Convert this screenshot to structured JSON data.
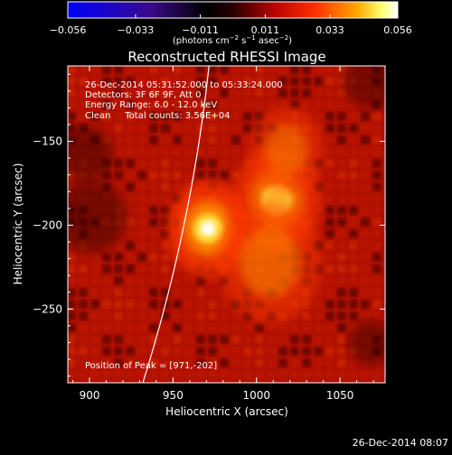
{
  "colorbar": {
    "ticks": [
      "−0.056",
      "−0.033",
      "−0.011",
      "0.011",
      "0.033",
      "0.056"
    ],
    "tick_values": [
      -0.056,
      -0.033,
      -0.011,
      0.011,
      0.033,
      0.056
    ],
    "range": [
      -0.056,
      0.056
    ],
    "colormap": "blue-black-red-yellow-white",
    "units_prefix": "(photons cm",
    "units_sup1": "−2",
    "units_mid": " s",
    "units_sup2": "−1",
    "units_mid2": " asec",
    "units_sup3": "−2",
    "units_suffix": ")"
  },
  "chart_data": {
    "type": "heatmap",
    "title": "Reconstructed RHESSI Image",
    "xlabel": "Heliocentric X (arcsec)",
    "ylabel": "Heliocentric Y (arcsec)",
    "xlim": [
      887,
      1077
    ],
    "ylim": [
      -294,
      -105
    ],
    "x_ticks": [
      900,
      950,
      1000,
      1050
    ],
    "y_ticks": [
      -150,
      -200,
      -250
    ],
    "x_tick_labels": [
      "900",
      "950",
      "1000",
      "1050"
    ],
    "y_tick_labels": [
      "−150",
      "−200",
      "−250"
    ],
    "sources": [
      {
        "x": 971,
        "y": -202,
        "peak": 0.056,
        "sigma": 11
      },
      {
        "x": 1012,
        "y": -185,
        "peak": 0.042,
        "sigma": 12
      },
      {
        "x": 1008,
        "y": -222,
        "peak": 0.03,
        "sigma": 14
      },
      {
        "x": 1018,
        "y": -155,
        "peak": 0.026,
        "sigma": 10
      }
    ],
    "annotations": [
      "26-Dec-2014 05:31:52.000 to 05:33:24.000",
      "Detectors: 3F 6F 9F, Att 0",
      "Energy Range: 6.0 - 12.0 keV",
      "Clean     Total counts: 3.56E+04"
    ],
    "peak_text": "Position of Peak = [971,-202]",
    "peak_position": [
      971,
      -202
    ],
    "limb": true,
    "grid": false
  },
  "footer": {
    "timestamp": "26-Dec-2014 08:07"
  }
}
